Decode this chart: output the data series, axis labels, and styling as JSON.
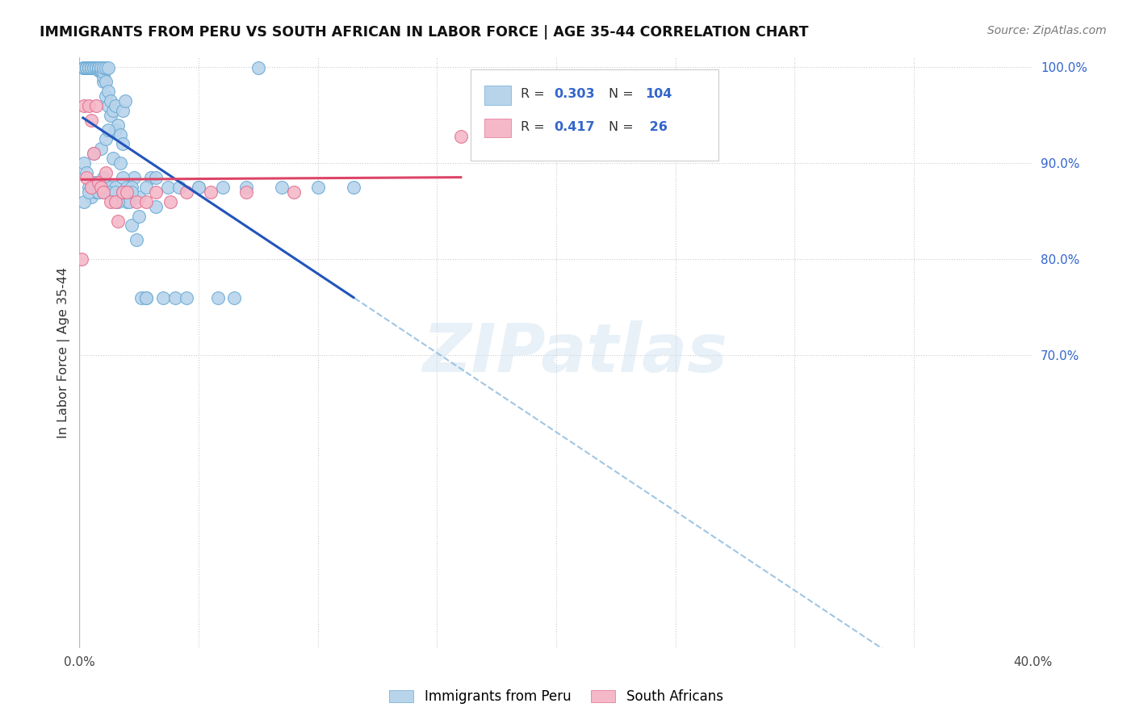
{
  "title": "IMMIGRANTS FROM PERU VS SOUTH AFRICAN IN LABOR FORCE | AGE 35-44 CORRELATION CHART",
  "source": "Source: ZipAtlas.com",
  "ylabel": "In Labor Force | Age 35-44",
  "xlim": [
    0.0,
    0.4
  ],
  "ylim": [
    0.395,
    1.01
  ],
  "yticks_right": [
    0.7,
    0.8,
    0.9,
    1.0
  ],
  "ytick_labels_right": [
    "70.0%",
    "80.0%",
    "90.0%",
    "100.0%"
  ],
  "xtick_positions": [
    0.0,
    0.05,
    0.1,
    0.15,
    0.2,
    0.25,
    0.3,
    0.35,
    0.4
  ],
  "color_blue_fill": "#b8d4eb",
  "color_blue_edge": "#6aaad4",
  "color_pink_fill": "#f5b8c8",
  "color_pink_edge": "#e07090",
  "color_trend_blue": "#2255bb",
  "color_trend_pink": "#dd4466",
  "color_dashed": "#88b8dd",
  "color_right_axis": "#3366cc",
  "watermark": "ZIPatlas",
  "R1": "0.303",
  "N1": "104",
  "R2": "0.417",
  "N2": " 26",
  "legend1": "Immigrants from Peru",
  "legend2": "South Africans",
  "peru_x": [
    0.0015,
    0.002,
    0.002,
    0.003,
    0.003,
    0.003,
    0.003,
    0.004,
    0.004,
    0.004,
    0.005,
    0.005,
    0.005,
    0.005,
    0.006,
    0.006,
    0.006,
    0.007,
    0.007,
    0.007,
    0.008,
    0.008,
    0.008,
    0.008,
    0.009,
    0.009,
    0.009,
    0.01,
    0.01,
    0.01,
    0.01,
    0.011,
    0.011,
    0.011,
    0.012,
    0.012,
    0.012,
    0.013,
    0.013,
    0.014,
    0.015,
    0.015,
    0.016,
    0.017,
    0.018,
    0.018,
    0.019,
    0.02,
    0.021,
    0.022,
    0.023,
    0.024,
    0.025,
    0.026,
    0.028,
    0.03,
    0.032,
    0.035,
    0.04,
    0.045,
    0.05,
    0.058,
    0.065,
    0.075,
    0.002,
    0.003,
    0.004,
    0.005,
    0.006,
    0.007,
    0.008,
    0.009,
    0.01,
    0.011,
    0.012,
    0.013,
    0.014,
    0.015,
    0.016,
    0.017,
    0.018,
    0.02,
    0.022,
    0.025,
    0.028,
    0.032,
    0.037,
    0.042,
    0.05,
    0.06,
    0.07,
    0.085,
    0.1,
    0.115,
    0.002,
    0.004,
    0.006,
    0.008,
    0.01,
    0.012,
    0.015,
    0.018,
    0.022,
    0.028
  ],
  "peru_y": [
    0.999,
    0.999,
    0.999,
    0.999,
    0.999,
    0.999,
    0.999,
    0.999,
    0.999,
    0.999,
    0.999,
    0.999,
    0.999,
    0.999,
    0.999,
    0.999,
    0.999,
    0.999,
    0.999,
    0.999,
    0.999,
    0.999,
    0.997,
    0.999,
    0.995,
    0.997,
    0.999,
    0.985,
    0.99,
    0.995,
    0.999,
    0.97,
    0.985,
    0.999,
    0.96,
    0.975,
    0.999,
    0.95,
    0.965,
    0.955,
    0.935,
    0.96,
    0.94,
    0.93,
    0.92,
    0.955,
    0.965,
    0.86,
    0.86,
    0.835,
    0.885,
    0.82,
    0.845,
    0.76,
    0.76,
    0.885,
    0.855,
    0.76,
    0.76,
    0.76,
    0.875,
    0.76,
    0.76,
    0.999,
    0.9,
    0.89,
    0.875,
    0.865,
    0.91,
    0.87,
    0.88,
    0.915,
    0.885,
    0.925,
    0.935,
    0.875,
    0.905,
    0.875,
    0.86,
    0.9,
    0.885,
    0.875,
    0.875,
    0.865,
    0.875,
    0.885,
    0.875,
    0.875,
    0.875,
    0.875,
    0.875,
    0.875,
    0.875,
    0.875,
    0.86,
    0.87,
    0.88,
    0.87,
    0.87,
    0.87,
    0.87,
    0.87,
    0.87,
    0.76
  ],
  "sa_x": [
    0.001,
    0.002,
    0.003,
    0.004,
    0.005,
    0.005,
    0.006,
    0.007,
    0.008,
    0.009,
    0.01,
    0.011,
    0.013,
    0.015,
    0.016,
    0.018,
    0.02,
    0.024,
    0.028,
    0.032,
    0.038,
    0.045,
    0.055,
    0.07,
    0.09,
    0.16
  ],
  "sa_y": [
    0.8,
    0.96,
    0.885,
    0.96,
    0.875,
    0.945,
    0.91,
    0.96,
    0.88,
    0.875,
    0.87,
    0.89,
    0.86,
    0.86,
    0.84,
    0.87,
    0.87,
    0.86,
    0.86,
    0.87,
    0.86,
    0.87,
    0.87,
    0.87,
    0.87,
    0.928
  ]
}
